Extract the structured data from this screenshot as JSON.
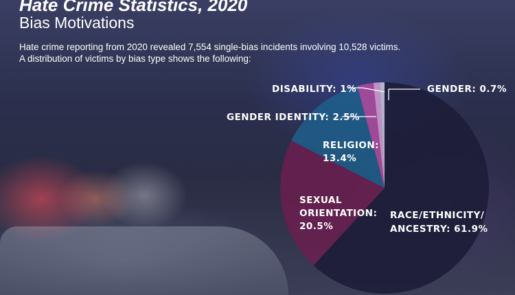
{
  "header": {
    "title": "Hate Crime Statistics, 2020",
    "subtitle": "Bias Motivations",
    "description_line1": "Hate crime reporting from 2020 revealed 7,554 single-bias incidents involving 10,528 victims.",
    "description_line2": "A distribution of victims by bias type shows the following:"
  },
  "chart_data": {
    "type": "pie",
    "title": "",
    "slices": [
      {
        "label_line1": "RACE/ETHNICITY/",
        "label_line2": "ANCESTRY: 61.9%",
        "value": 61.9,
        "color": "#1d1d3a"
      },
      {
        "label_line1": "SEXUAL",
        "label_line2": "ORIENTATION:",
        "label_line3": "20.5%",
        "value": 20.5,
        "color": "#6b1f4f"
      },
      {
        "label_line1": "RELIGION:",
        "label_line2": "13.4%",
        "value": 13.4,
        "color": "#1f5f8c"
      },
      {
        "label_line1": "GENDER IDENTITY: 2.5%",
        "value": 2.5,
        "color": "#b24ea0"
      },
      {
        "label_line1": "DISABILITY: 1%",
        "value": 1.0,
        "color": "#d9a0d6"
      },
      {
        "label_line1": "GENDER: 0.7%",
        "value": 0.7,
        "color": "#c9c9dc"
      }
    ]
  }
}
